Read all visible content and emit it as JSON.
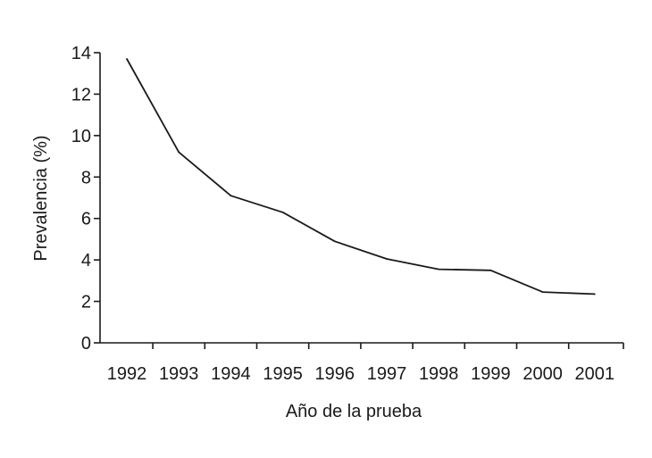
{
  "chart_data": {
    "type": "line",
    "title": "",
    "xlabel": "Año de la prueba",
    "ylabel": "Prevalencia (%)",
    "categories": [
      "1992",
      "1993",
      "1994",
      "1995",
      "1996",
      "1997",
      "1998",
      "1999",
      "2000",
      "2001"
    ],
    "series": [
      {
        "values": [
          13.7,
          9.2,
          7.1,
          6.3,
          4.9,
          4.05,
          3.55,
          3.5,
          2.45,
          2.35
        ]
      }
    ],
    "ylim": [
      0,
      14
    ],
    "yticks": [
      "0",
      "2",
      "4",
      "6",
      "8",
      "10",
      "12",
      "14"
    ],
    "grid": false,
    "legend": "none",
    "colors": {
      "line": "#1a1a1a",
      "axis": "#1a1a1a"
    }
  }
}
